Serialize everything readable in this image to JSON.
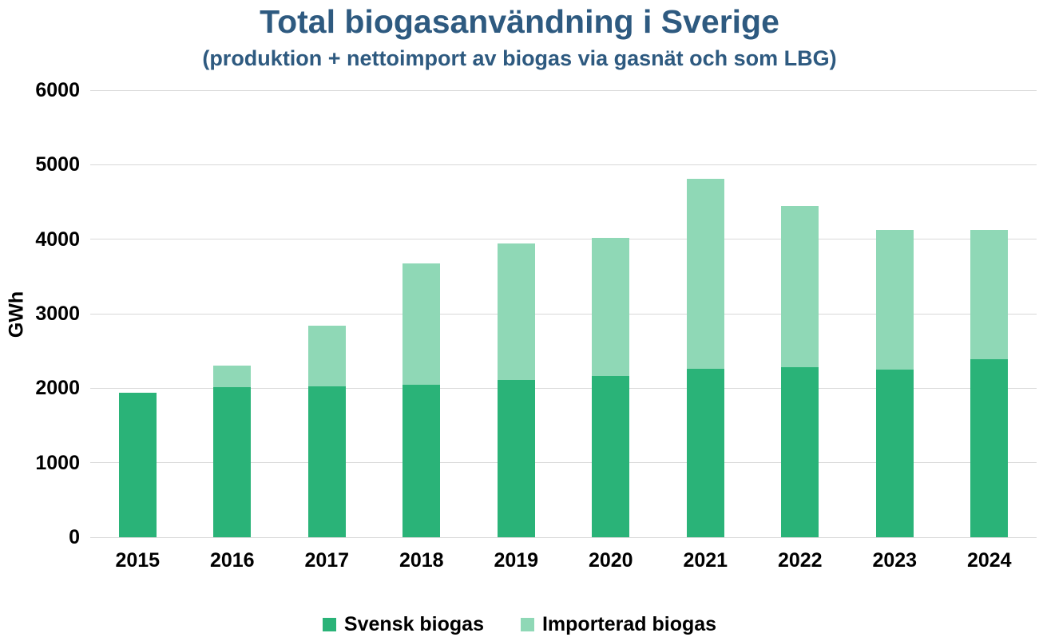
{
  "title": "Total biogasanvändning i Sverige",
  "subtitle": "(produktion + nettoimport av biogas via gasnät och som LBG)",
  "colors": {
    "svensk": "#2AB378",
    "importerad": "#8FD8B6",
    "title_text": "#2E5A80",
    "axis_text": "#000000",
    "grid": "#D9D9D9"
  },
  "legend": {
    "items": [
      {
        "label": "Svensk biogas",
        "color_key": "svensk"
      },
      {
        "label": "Importerad biogas",
        "color_key": "importerad"
      }
    ]
  },
  "chart_data": {
    "type": "bar",
    "stacked": true,
    "title": "Total biogasanvändning i Sverige",
    "subtitle": "(produktion + nettoimport av biogas via gasnät och som LBG)",
    "categories": [
      "2015",
      "2016",
      "2017",
      "2018",
      "2019",
      "2020",
      "2021",
      "2022",
      "2023",
      "2024"
    ],
    "series": [
      {
        "name": "Svensk biogas",
        "values": [
          1940,
          2010,
          2030,
          2050,
          2110,
          2160,
          2260,
          2280,
          2250,
          2390
        ]
      },
      {
        "name": "Importerad biogas",
        "values": [
          0,
          290,
          810,
          1630,
          1830,
          1860,
          2550,
          2170,
          1880,
          1740
        ]
      }
    ],
    "totals": [
      1940,
      2300,
      2840,
      3680,
      3940,
      4020,
      4810,
      4450,
      4130,
      4130
    ],
    "xlabel": "",
    "ylabel": "GWh",
    "ylim": [
      0,
      6000
    ],
    "ytick_step": 1000,
    "yticks": [
      "0",
      "1000",
      "2000",
      "3000",
      "4000",
      "5000",
      "6000"
    ],
    "grid": "horizontal",
    "legend_position": "bottom"
  }
}
